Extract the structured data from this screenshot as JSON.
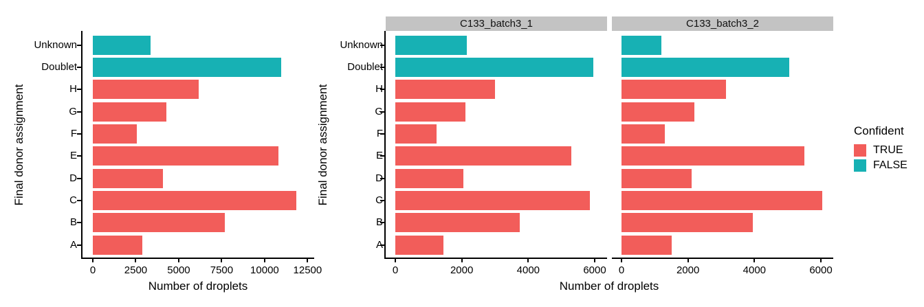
{
  "colors": {
    "confident_true": "#F25D5A",
    "confident_false": "#17B1B4",
    "strip_background": "#C3C3C3",
    "axis": "#000000"
  },
  "legend": {
    "title": "Confident",
    "entries": [
      {
        "label": "TRUE",
        "color": "#F25D5A"
      },
      {
        "label": "FALSE",
        "color": "#17B1B4"
      }
    ]
  },
  "chart_data": [
    {
      "type": "bar",
      "orientation": "horizontal",
      "title": "",
      "categories": [
        "Unknown",
        "Doublet",
        "H",
        "G",
        "F",
        "E",
        "D",
        "C",
        "B",
        "A"
      ],
      "values": [
        3350,
        10950,
        6150,
        4300,
        2550,
        10800,
        4100,
        11850,
        7700,
        2900
      ],
      "confident": [
        false,
        false,
        true,
        true,
        true,
        true,
        true,
        true,
        true,
        true
      ],
      "series_by": "Confident",
      "xlabel": "Number of droplets",
      "ylabel": "Final donor assignment",
      "xlim": [
        0,
        12500
      ],
      "xticks": [
        0,
        2500,
        5000,
        7500,
        10000,
        12500
      ],
      "grid": false,
      "legend_position": "right"
    },
    {
      "type": "bar",
      "orientation": "horizontal",
      "title": "C133_batch3_1",
      "categories": [
        "Unknown",
        "Doublet",
        "H",
        "G",
        "F",
        "E",
        "D",
        "C",
        "B",
        "A"
      ],
      "values": [
        2150,
        5950,
        3000,
        2100,
        1250,
        5300,
        2050,
        5850,
        3750,
        1450
      ],
      "confident": [
        false,
        false,
        true,
        true,
        true,
        true,
        true,
        true,
        true,
        true
      ],
      "series_by": "Confident",
      "xlabel": "Number of droplets",
      "ylabel": "Final donor assignment",
      "xlim": [
        0,
        6000
      ],
      "xticks": [
        0,
        2000,
        4000,
        6000
      ],
      "grid": false,
      "legend_position": "right"
    },
    {
      "type": "bar",
      "orientation": "horizontal",
      "title": "C133_batch3_2",
      "categories": [
        "Unknown",
        "Doublet",
        "H",
        "G",
        "F",
        "E",
        "D",
        "C",
        "B",
        "A"
      ],
      "values": [
        1200,
        5050,
        3150,
        2200,
        1300,
        5500,
        2100,
        6050,
        3950,
        1500
      ],
      "confident": [
        false,
        false,
        true,
        true,
        true,
        true,
        true,
        true,
        true,
        true
      ],
      "series_by": "Confident",
      "xlabel": "Number of droplets",
      "ylabel": "Final donor assignment",
      "xlim": [
        0,
        6000
      ],
      "xticks": [
        0,
        2000,
        4000,
        6000
      ],
      "grid": false,
      "legend_position": "right"
    }
  ]
}
